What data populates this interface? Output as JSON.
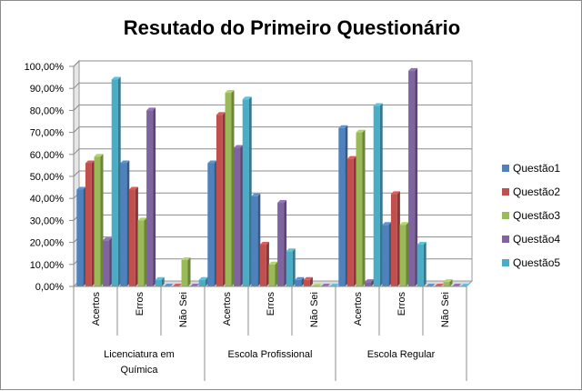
{
  "chart_data": {
    "type": "bar",
    "title": "Resutado do Primeiro Questionário",
    "ylim": [
      0,
      100
    ],
    "yticks": [
      "0,00%",
      "10,00%",
      "20,00%",
      "30,00%",
      "40,00%",
      "50,00%",
      "60,00%",
      "70,00%",
      "80,00%",
      "90,00%",
      "100,00%"
    ],
    "grid": true,
    "legend_position": "right",
    "groups": [
      {
        "label": "Licenciatura em Química",
        "label_lines": [
          "Licenciatura em",
          "Química"
        ],
        "categories": [
          "Acertos",
          "Erros",
          "Não Sei"
        ]
      },
      {
        "label": "Escola Profissional",
        "label_lines": [
          "Escola Profissional"
        ],
        "categories": [
          "Acertos",
          "Erros",
          "Não Sei"
        ]
      },
      {
        "label": "Escola Regular",
        "label_lines": [
          "Escola Regular"
        ],
        "categories": [
          "Acertos",
          "Erros",
          "Não Sei"
        ]
      }
    ],
    "series": [
      {
        "name": "Questão1",
        "color": "#4F81BD",
        "values": [
          44,
          56,
          0,
          56,
          41,
          3,
          72,
          28,
          0
        ]
      },
      {
        "name": "Questão2",
        "color": "#C0504D",
        "values": [
          56,
          44,
          0,
          78,
          19,
          3,
          58,
          42,
          0
        ]
      },
      {
        "name": "Questão3",
        "color": "#9BBB59",
        "values": [
          59,
          30,
          12,
          88,
          10,
          0,
          70,
          28,
          2
        ]
      },
      {
        "name": "Questão4",
        "color": "#8064A2",
        "values": [
          21,
          80,
          0,
          63,
          38,
          0,
          2,
          98,
          0
        ]
      },
      {
        "name": "Questão5",
        "color": "#4BACC6",
        "values": [
          94,
          3,
          3,
          85,
          16,
          0,
          82,
          19,
          0
        ]
      }
    ]
  }
}
